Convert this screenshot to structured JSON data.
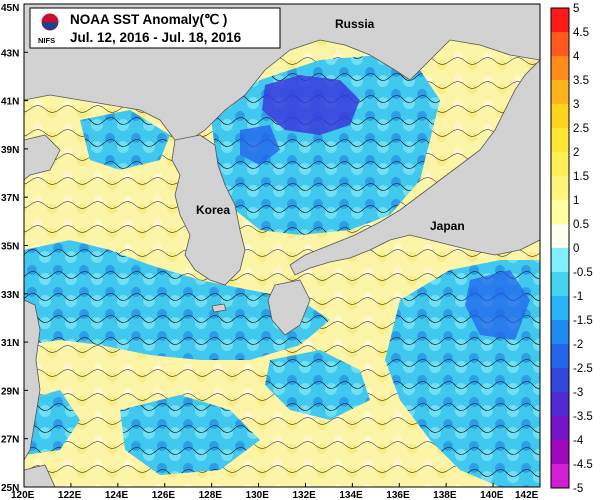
{
  "title": {
    "org": "NIFS",
    "line1": "NOAA SST Anomaly(℃ )",
    "line2": "Jul. 12, 2016 - Jul. 18, 2016"
  },
  "places": {
    "russia": "Russia",
    "korea": "Korea",
    "japan": "Japan"
  },
  "axes": {
    "x_ticks": [
      "120E",
      "122E",
      "124E",
      "126E",
      "128E",
      "130E",
      "132E",
      "134E",
      "136E",
      "138E",
      "140E",
      "142E"
    ],
    "y_ticks": [
      "45N",
      "43N",
      "41N",
      "39N",
      "37N",
      "35N",
      "33N",
      "31N",
      "29N",
      "27N",
      "25N"
    ]
  },
  "colorbar": {
    "labels": [
      "5",
      "4.5",
      "4",
      "3.5",
      "3",
      "2.5",
      "2",
      "1.5",
      "1",
      "0.5",
      "0",
      "-0.5",
      "-1",
      "-1.5",
      "-2",
      "-2.5",
      "-3",
      "-3.5",
      "-4",
      "-4.5",
      "-5"
    ],
    "colors": [
      "#ff1a1a",
      "#ff5a1e",
      "#ff8c1a",
      "#ffb41e",
      "#ffd21e",
      "#ffe632",
      "#ffee55",
      "#fff57a",
      "#ffffa0",
      "#fffff0",
      "#7ff0ff",
      "#40d2f0",
      "#28b4f5",
      "#1e8cf0",
      "#2364eb",
      "#3246dc",
      "#5028d2",
      "#7814c8",
      "#a00abe",
      "#d21ed2"
    ]
  },
  "legend_colors": {
    "land": "#d2d2d2",
    "warm_sea": "#fcf4a6",
    "cool_sea": "#3ec9ec",
    "cold_sea": "#1e8ce6",
    "very_cold_sea": "#3a3adc"
  }
}
